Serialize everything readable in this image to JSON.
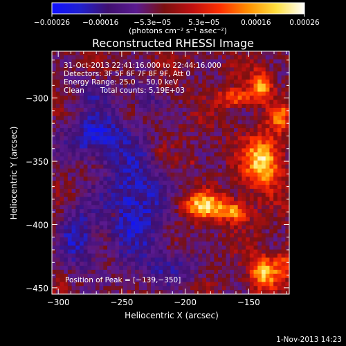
{
  "chart_data": {
    "type": "heatmap",
    "title": "Reconstructed RHESSI Image",
    "xlabel": "Heliocentric X (arcsec)",
    "ylabel": "Heliocentric Y (arcsec)",
    "xlim": [
      -305,
      -118
    ],
    "ylim": [
      -455,
      -263
    ],
    "xticks": [
      -300,
      -250,
      -200,
      -150
    ],
    "xtick_labels": [
      "−300",
      "−250",
      "−200",
      "−150"
    ],
    "yticks": [
      -300,
      -350,
      -400,
      -450
    ],
    "ytick_labels": [
      "−300",
      "−350",
      "−400",
      "−450"
    ],
    "colorbar": {
      "min": -0.00026,
      "max": 0.00026,
      "ticks": [
        -0.00026,
        -0.00016,
        -5.3e-05,
        5.3e-05,
        0.00016,
        0.00026
      ],
      "tick_labels": [
        "−0.00026",
        "−0.00016",
        "−5.3e−05",
        "5.3e−05",
        "0.00016",
        "0.00026"
      ],
      "units_label": "(photons cm⁻² s⁻¹ asec⁻²)",
      "colormap": [
        "#1010ff",
        "#2020d0",
        "#401070",
        "#5a1a90",
        "#7a1010",
        "#c01010",
        "#ff3000",
        "#ff9000",
        "#ffe040",
        "#ffffff"
      ]
    },
    "annotations": {
      "time_range": "31-Oct-2013 22:41:16.000 to 22:44:16.000",
      "detectors": "Detectors: 3F 5F 6F 7F 8F 9F, Att 0",
      "energy_range": "Energy Range: 25.0 − 50.0 keV",
      "method": "Clean",
      "total_counts": "Total counts: 5.19E+03",
      "peak_position": "Position of Peak = [−139,−350]"
    },
    "sources": [
      {
        "x": -160,
        "y": -300,
        "sx": 10,
        "sy": 5,
        "amp": 0.00016
      },
      {
        "x": -140,
        "y": -290,
        "sx": 6,
        "sy": 8,
        "amp": 0.0002
      },
      {
        "x": -139,
        "y": -350,
        "sx": 10,
        "sy": 14,
        "amp": 0.00026
      },
      {
        "x": -125,
        "y": -315,
        "sx": 6,
        "sy": 8,
        "amp": 0.00014
      },
      {
        "x": -185,
        "y": -385,
        "sx": 12,
        "sy": 7,
        "amp": 0.00024
      },
      {
        "x": -160,
        "y": -390,
        "sx": 8,
        "sy": 6,
        "amp": 0.00018
      },
      {
        "x": -138,
        "y": -438,
        "sx": 8,
        "sy": 9,
        "amp": 0.00022
      },
      {
        "x": -120,
        "y": -430,
        "sx": 6,
        "sy": 8,
        "amp": 0.00012
      },
      {
        "x": -255,
        "y": -392,
        "sx": 2,
        "sy": 2,
        "amp": 0.0001
      },
      {
        "x": -220,
        "y": -340,
        "sx": 3,
        "sy": 3,
        "amp": 6e-05
      },
      {
        "x": -195,
        "y": -350,
        "sx": 3,
        "sy": 3,
        "amp": 5e-05
      }
    ],
    "negative_regions": [
      {
        "x": -270,
        "y": -330,
        "sx": 20,
        "sy": 14,
        "amp": -0.00016
      },
      {
        "x": -240,
        "y": -385,
        "sx": 18,
        "sy": 30,
        "amp": -0.00018
      },
      {
        "x": -285,
        "y": -410,
        "sx": 10,
        "sy": 20,
        "amp": -0.00014
      },
      {
        "x": -270,
        "y": -295,
        "sx": 12,
        "sy": 8,
        "amp": -0.0001
      },
      {
        "x": -230,
        "y": -300,
        "sx": 10,
        "sy": 8,
        "amp": -8e-05
      },
      {
        "x": -210,
        "y": -435,
        "sx": 18,
        "sy": 10,
        "amp": -0.0001
      }
    ]
  },
  "footer": {
    "date_stamp": "1-Nov-2013 14:23"
  }
}
